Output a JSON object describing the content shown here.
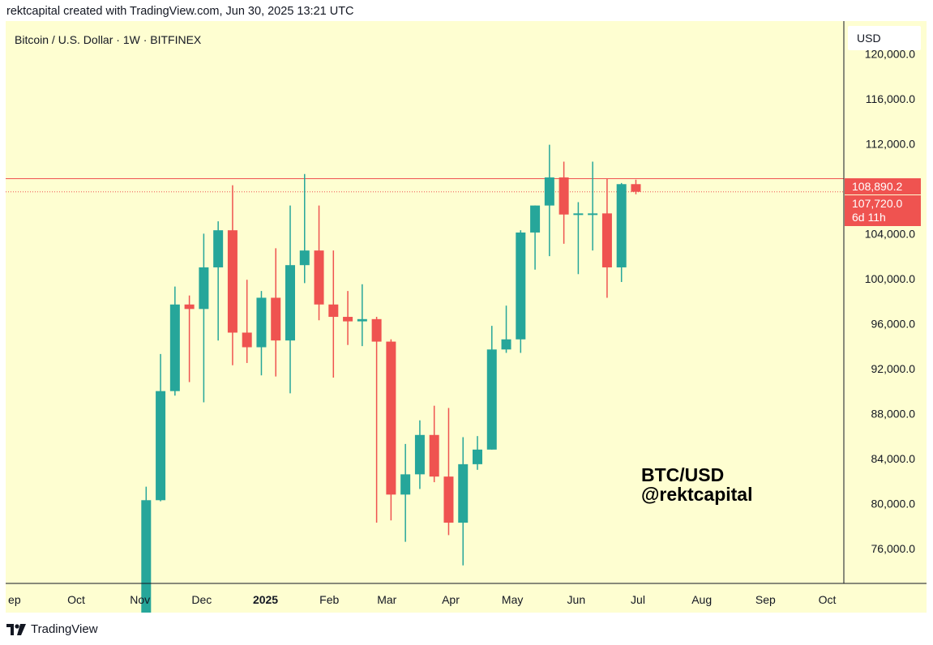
{
  "header": {
    "attribution": "rektcapital created with TradingView.com, Jun 30, 2025 13:21 UTC"
  },
  "footer": {
    "brand": "TradingView"
  },
  "colors": {
    "background": "#fefed1",
    "up": "#26a69a",
    "down": "#ef5350",
    "axis": "#131722",
    "level_line": "#ef5350"
  },
  "chart_data": {
    "type": "candlestick",
    "title": "Bitcoin / U.S. Dollar · 1W · BITFINEX",
    "currency_button": "USD",
    "annotation": [
      "BTC/USD",
      "@rektcapital"
    ],
    "ylim": [
      72900,
      122900
    ],
    "y_ticks": [
      {
        "value": 120000,
        "label": "120,000.0"
      },
      {
        "value": 116000,
        "label": "116,000.0"
      },
      {
        "value": 112000,
        "label": "112,000.0"
      },
      {
        "value": 104000,
        "label": "104,000.0"
      },
      {
        "value": 100000,
        "label": "100,000.0"
      },
      {
        "value": 96000,
        "label": "96,000.0"
      },
      {
        "value": 92000,
        "label": "92,000.0"
      },
      {
        "value": 88000,
        "label": "88,000.0"
      },
      {
        "value": 84000,
        "label": "84,000.0"
      },
      {
        "value": 80000,
        "label": "80,000.0"
      },
      {
        "value": 76000,
        "label": "76,000.0"
      }
    ],
    "x_ticks": [
      {
        "label": "ep",
        "date": "2024-09-01"
      },
      {
        "label": "Oct",
        "date": "2024-10-01"
      },
      {
        "label": "Nov",
        "date": "2024-11-01"
      },
      {
        "label": "Dec",
        "date": "2024-12-01"
      },
      {
        "label": "2025",
        "date": "2025-01-01",
        "bold": true
      },
      {
        "label": "Feb",
        "date": "2025-02-01"
      },
      {
        "label": "Mar",
        "date": "2025-03-01"
      },
      {
        "label": "Apr",
        "date": "2025-04-01"
      },
      {
        "label": "May",
        "date": "2025-05-01"
      },
      {
        "label": "Jun",
        "date": "2025-06-01"
      },
      {
        "label": "Jul",
        "date": "2025-07-01"
      },
      {
        "label": "Aug",
        "date": "2025-08-01"
      },
      {
        "label": "Sep",
        "date": "2025-09-01"
      },
      {
        "label": "Oct",
        "date": "2025-10-01"
      }
    ],
    "level_line": {
      "value": 108890.2,
      "label": "108,890.2"
    },
    "last_price": {
      "value": 107720.0,
      "label": "107,720.0",
      "countdown": "6d 11h"
    },
    "candles": [
      {
        "date": "2024-11-04",
        "open": 69400,
        "high": 81500,
        "low": 69000,
        "close": 80300
      },
      {
        "date": "2024-11-11",
        "open": 80300,
        "high": 93300,
        "low": 80200,
        "close": 90000
      },
      {
        "date": "2024-11-18",
        "open": 90000,
        "high": 99300,
        "low": 89600,
        "close": 97700
      },
      {
        "date": "2024-11-25",
        "open": 97700,
        "high": 98500,
        "low": 90800,
        "close": 97300
      },
      {
        "date": "2024-12-02",
        "open": 97300,
        "high": 104000,
        "low": 89000,
        "close": 101000
      },
      {
        "date": "2024-12-09",
        "open": 101000,
        "high": 105100,
        "low": 94500,
        "close": 104300
      },
      {
        "date": "2024-12-16",
        "open": 104300,
        "high": 108300,
        "low": 92300,
        "close": 95200
      },
      {
        "date": "2024-12-23",
        "open": 95200,
        "high": 99900,
        "low": 92500,
        "close": 93900
      },
      {
        "date": "2024-12-30",
        "open": 93900,
        "high": 98900,
        "low": 91400,
        "close": 98300
      },
      {
        "date": "2025-01-06",
        "open": 98300,
        "high": 102700,
        "low": 91300,
        "close": 94500
      },
      {
        "date": "2025-01-13",
        "open": 94500,
        "high": 106500,
        "low": 89800,
        "close": 101200
      },
      {
        "date": "2025-01-20",
        "open": 101200,
        "high": 109300,
        "low": 99600,
        "close": 102500
      },
      {
        "date": "2025-01-27",
        "open": 102500,
        "high": 106500,
        "low": 96300,
        "close": 97700
      },
      {
        "date": "2025-02-03",
        "open": 97700,
        "high": 102500,
        "low": 91200,
        "close": 96600
      },
      {
        "date": "2025-02-10",
        "open": 96600,
        "high": 98900,
        "low": 94100,
        "close": 96200
      },
      {
        "date": "2025-02-17",
        "open": 96200,
        "high": 99500,
        "low": 94000,
        "close": 96400
      },
      {
        "date": "2025-02-24",
        "open": 96400,
        "high": 96600,
        "low": 78300,
        "close": 94400
      },
      {
        "date": "2025-03-03",
        "open": 94400,
        "high": 94600,
        "low": 78500,
        "close": 80800
      },
      {
        "date": "2025-03-10",
        "open": 80800,
        "high": 85300,
        "low": 76600,
        "close": 82600
      },
      {
        "date": "2025-03-17",
        "open": 82600,
        "high": 87400,
        "low": 81300,
        "close": 86100
      },
      {
        "date": "2025-03-24",
        "open": 86100,
        "high": 88700,
        "low": 81900,
        "close": 82400
      },
      {
        "date": "2025-03-31",
        "open": 82400,
        "high": 88500,
        "low": 77200,
        "close": 78300
      },
      {
        "date": "2025-04-07",
        "open": 78300,
        "high": 85900,
        "low": 74500,
        "close": 83500
      },
      {
        "date": "2025-04-14",
        "open": 83500,
        "high": 86000,
        "low": 83000,
        "close": 84800
      },
      {
        "date": "2025-04-21",
        "open": 84800,
        "high": 95800,
        "low": 84800,
        "close": 93700
      },
      {
        "date": "2025-04-28",
        "open": 93700,
        "high": 97600,
        "low": 93400,
        "close": 94600
      },
      {
        "date": "2025-05-05",
        "open": 94600,
        "high": 104300,
        "low": 93400,
        "close": 104100
      },
      {
        "date": "2025-05-12",
        "open": 104100,
        "high": 106500,
        "low": 100800,
        "close": 106500
      },
      {
        "date": "2025-05-19",
        "open": 106500,
        "high": 111900,
        "low": 102000,
        "close": 109000
      },
      {
        "date": "2025-05-26",
        "open": 109000,
        "high": 110400,
        "low": 103100,
        "close": 105700
      },
      {
        "date": "2025-06-02",
        "open": 105700,
        "high": 106800,
        "low": 100400,
        "close": 105800
      },
      {
        "date": "2025-06-09",
        "open": 105800,
        "high": 110400,
        "low": 102500,
        "close": 105800
      },
      {
        "date": "2025-06-16",
        "open": 105800,
        "high": 108900,
        "low": 98300,
        "close": 101000
      },
      {
        "date": "2025-06-23",
        "open": 101000,
        "high": 108500,
        "low": 99700,
        "close": 108400
      },
      {
        "date": "2025-06-30",
        "open": 108400,
        "high": 108800,
        "low": 107500,
        "close": 107720
      }
    ]
  }
}
